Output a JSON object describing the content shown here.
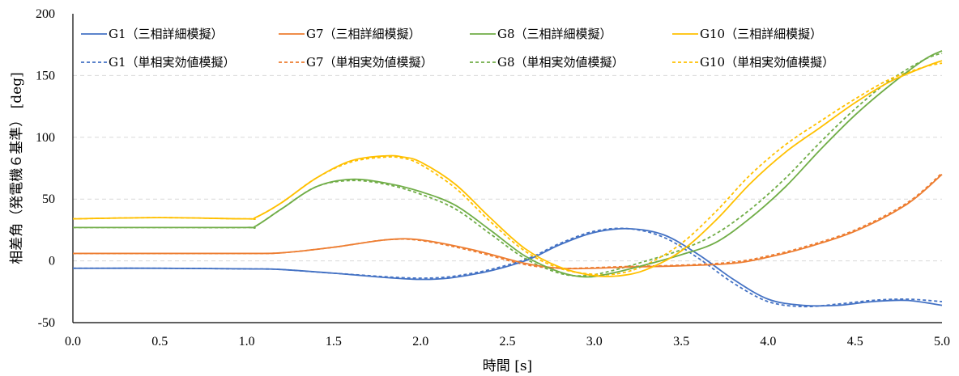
{
  "chart_data": {
    "type": "line",
    "xlabel": "時間 [s]",
    "ylabel": "相差角（発電機６基準） [deg]",
    "xlim": [
      0.0,
      5.0
    ],
    "ylim": [
      -50,
      200
    ],
    "xticks": [
      "0.0",
      "0.5",
      "1.0",
      "1.5",
      "2.0",
      "2.5",
      "3.0",
      "3.5",
      "4.0",
      "4.5",
      "5.0"
    ],
    "yticks": [
      "-50",
      "0",
      "50",
      "100",
      "150",
      "200"
    ],
    "grid": "horizontal dashed",
    "legend_position": "top",
    "series": [
      {
        "name": "G1（三相詳細模擬）",
        "color": "#4472c4",
        "dash": "solid",
        "x": [
          0.0,
          0.5,
          1.0,
          1.2,
          1.5,
          2.0,
          2.3,
          2.6,
          2.8,
          3.0,
          3.2,
          3.4,
          3.6,
          3.8,
          4.0,
          4.2,
          4.4,
          4.6,
          4.8,
          5.0
        ],
        "y": [
          -6,
          -6,
          -6.5,
          -7,
          -10,
          -15,
          -11,
          0,
          13,
          23,
          26,
          21,
          5,
          -15,
          -31,
          -36,
          -36,
          -33,
          -32,
          -36
        ]
      },
      {
        "name": "G7（三相詳細模擬）",
        "color": "#ed7d31",
        "dash": "solid",
        "x": [
          0.0,
          0.5,
          1.0,
          1.2,
          1.5,
          1.8,
          2.0,
          2.3,
          2.6,
          2.8,
          3.0,
          3.2,
          3.5,
          3.8,
          4.0,
          4.2,
          4.5,
          4.8,
          5.0
        ],
        "y": [
          6,
          6,
          6,
          6.5,
          11,
          17,
          17,
          9,
          -2,
          -6,
          -6,
          -5,
          -4,
          -2,
          3,
          10,
          24,
          46,
          70
        ]
      },
      {
        "name": "G8（三相詳細模擬）",
        "color": "#70ad47",
        "dash": "solid",
        "x": [
          0.0,
          0.5,
          1.0,
          1.05,
          1.2,
          1.4,
          1.6,
          1.8,
          2.0,
          2.2,
          2.4,
          2.6,
          2.8,
          2.95,
          3.1,
          3.3,
          3.5,
          3.7,
          3.9,
          4.1,
          4.3,
          4.5,
          4.7,
          4.9,
          5.0
        ],
        "y": [
          27,
          27,
          27,
          28,
          42,
          60,
          66,
          63,
          56,
          45,
          25,
          4,
          -9,
          -13,
          -10,
          -3,
          5,
          15,
          35,
          60,
          90,
          118,
          142,
          163,
          170
        ]
      },
      {
        "name": "G10（三相詳細模擬）",
        "color": "#ffc000",
        "dash": "solid",
        "x": [
          0.0,
          0.5,
          1.0,
          1.05,
          1.2,
          1.4,
          1.6,
          1.8,
          1.9,
          2.0,
          2.2,
          2.4,
          2.6,
          2.8,
          3.0,
          3.15,
          3.3,
          3.5,
          3.7,
          3.9,
          4.1,
          4.3,
          4.5,
          4.7,
          4.9,
          5.0
        ],
        "y": [
          34,
          35,
          34,
          35,
          47,
          67,
          81,
          85,
          84,
          80,
          62,
          35,
          10,
          -5,
          -12,
          -12,
          -7,
          8,
          33,
          63,
          88,
          108,
          128,
          145,
          157,
          162
        ]
      },
      {
        "name": "G1（単相実効値模擬）",
        "color": "#4472c4",
        "dash": "dashed",
        "x": [
          0.0,
          0.5,
          1.0,
          1.2,
          1.5,
          2.0,
          2.3,
          2.6,
          2.8,
          3.0,
          3.2,
          3.4,
          3.6,
          3.8,
          4.0,
          4.2,
          4.4,
          4.6,
          4.8,
          5.0
        ],
        "y": [
          -6,
          -6,
          -6.5,
          -7,
          -10,
          -14,
          -10,
          1,
          14,
          24,
          26,
          19,
          2,
          -18,
          -33,
          -37,
          -35,
          -32,
          -31,
          -33
        ]
      },
      {
        "name": "G7（単相実効値模擬）",
        "color": "#ed7d31",
        "dash": "dashed",
        "x": [
          0.0,
          0.5,
          1.0,
          1.2,
          1.5,
          1.8,
          2.0,
          2.3,
          2.6,
          2.8,
          3.0,
          3.2,
          3.5,
          3.8,
          4.0,
          4.2,
          4.5,
          4.8,
          5.0
        ],
        "y": [
          6,
          6,
          6,
          6.5,
          11,
          17,
          16.5,
          8,
          -3,
          -6,
          -5.5,
          -4.5,
          -3.5,
          -1,
          4,
          11,
          25,
          47,
          71
        ]
      },
      {
        "name": "G8（単相実効値模擬）",
        "color": "#70ad47",
        "dash": "dashed",
        "x": [
          0.0,
          0.5,
          1.0,
          1.05,
          1.2,
          1.4,
          1.6,
          1.8,
          2.0,
          2.2,
          2.4,
          2.6,
          2.8,
          2.95,
          3.1,
          3.3,
          3.5,
          3.7,
          3.9,
          4.1,
          4.3,
          4.5,
          4.7,
          4.9,
          5.0
        ],
        "y": [
          27,
          27,
          27,
          28,
          42,
          60,
          65,
          62,
          54,
          42,
          22,
          2,
          -10,
          -12,
          -8,
          0,
          9,
          22,
          42,
          67,
          96,
          123,
          146,
          163,
          168
        ]
      },
      {
        "name": "G10（単相実効値模擬）",
        "color": "#ffc000",
        "dash": "dashed",
        "x": [
          0.0,
          0.5,
          1.0,
          1.05,
          1.2,
          1.4,
          1.6,
          1.8,
          1.9,
          2.0,
          2.2,
          2.4,
          2.6,
          2.8,
          3.0,
          3.15,
          3.3,
          3.5,
          3.7,
          3.9,
          4.1,
          4.3,
          4.5,
          4.7,
          4.9,
          5.0
        ],
        "y": [
          34,
          35,
          34,
          35,
          47,
          67,
          80,
          84,
          83,
          78,
          59,
          32,
          8,
          -6,
          -11,
          -10,
          -3,
          14,
          40,
          70,
          94,
          113,
          131,
          147,
          157,
          160
        ]
      }
    ]
  }
}
